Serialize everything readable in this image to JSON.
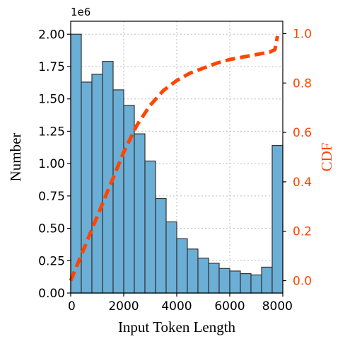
{
  "chart_data": {
    "type": "bar",
    "title": "",
    "xlabel": "Input Token Length",
    "ylabel": "Number",
    "y2label": "CDF",
    "y_offset_label": "1e6",
    "xlim": [
      0,
      8000
    ],
    "ylim": [
      0,
      2.1
    ],
    "y2lim": [
      -0.05,
      1.05
    ],
    "x_ticks": [
      0,
      2000,
      4000,
      6000,
      8000
    ],
    "x_tick_labels": [
      "0",
      "2000",
      "4000",
      "6000",
      "8000"
    ],
    "y_ticks": [
      0,
      0.25,
      0.5,
      0.75,
      1.0,
      1.25,
      1.5,
      1.75,
      2.0
    ],
    "y_tick_labels": [
      "0.00",
      "0.25",
      "0.50",
      "0.75",
      "1.00",
      "1.25",
      "1.50",
      "1.75",
      "2.00"
    ],
    "y2_ticks": [
      0,
      0.2,
      0.4,
      0.6,
      0.8,
      1.0
    ],
    "y2_tick_labels": [
      "0.0",
      "0.2",
      "0.4",
      "0.6",
      "0.8",
      "1.0"
    ],
    "grid": true,
    "bin_width": 400,
    "bins": [
      {
        "x0": 0,
        "value": 2.0
      },
      {
        "x0": 400,
        "value": 1.63
      },
      {
        "x0": 800,
        "value": 1.69
      },
      {
        "x0": 1200,
        "value": 1.79
      },
      {
        "x0": 1600,
        "value": 1.57
      },
      {
        "x0": 2000,
        "value": 1.45
      },
      {
        "x0": 2400,
        "value": 1.23
      },
      {
        "x0": 2800,
        "value": 1.02
      },
      {
        "x0": 3200,
        "value": 0.73
      },
      {
        "x0": 3600,
        "value": 0.55
      },
      {
        "x0": 4000,
        "value": 0.42
      },
      {
        "x0": 4400,
        "value": 0.34
      },
      {
        "x0": 4800,
        "value": 0.27
      },
      {
        "x0": 5200,
        "value": 0.23
      },
      {
        "x0": 5600,
        "value": 0.19
      },
      {
        "x0": 6000,
        "value": 0.17
      },
      {
        "x0": 6400,
        "value": 0.15
      },
      {
        "x0": 6800,
        "value": 0.14
      },
      {
        "x0": 7200,
        "value": 0.2
      },
      {
        "x0": 7600,
        "value": 1.14
      }
    ],
    "cdf": {
      "x": [
        0,
        500,
        1000,
        1500,
        2000,
        2500,
        3000,
        3500,
        4000,
        4500,
        5000,
        5500,
        6000,
        6500,
        7000,
        7500,
        7700,
        7750,
        7800
      ],
      "y": [
        0.0,
        0.13,
        0.26,
        0.39,
        0.52,
        0.63,
        0.71,
        0.77,
        0.81,
        0.84,
        0.86,
        0.88,
        0.895,
        0.905,
        0.915,
        0.925,
        0.935,
        0.96,
        0.99
      ]
    },
    "colors": {
      "bars": "#6baed6",
      "bar_edge": "#333333",
      "cdf_line": "#ff4500",
      "grid": "#bbbbbb"
    }
  }
}
